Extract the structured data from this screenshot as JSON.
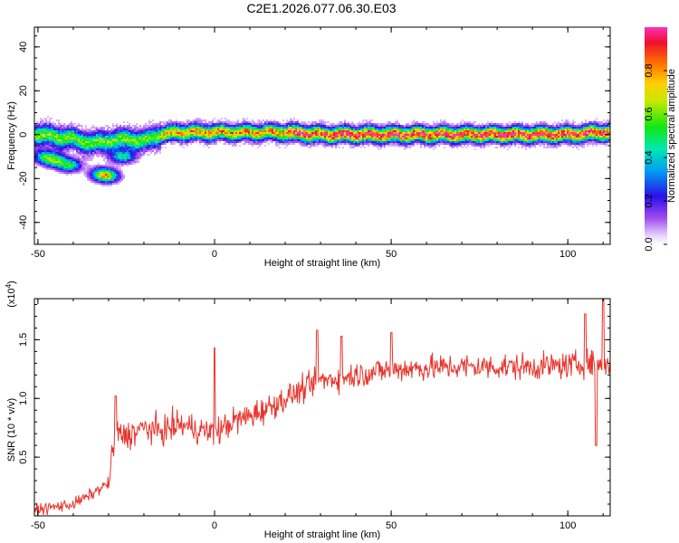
{
  "title": "C2E1.2026.077.06.30.E03",
  "chart_data": [
    {
      "type": "heatmap",
      "name": "spectrogram",
      "xlabel": "Height of straight line (km)",
      "ylabel": "Frequency (Hz)",
      "xlim": [
        -51,
        112
      ],
      "ylim": [
        -50,
        49
      ],
      "xticks": [
        -50,
        0,
        50,
        100
      ],
      "yticks": [
        -40,
        -20,
        0,
        20,
        40
      ],
      "xtick_labels": [
        "-50",
        "0",
        "50",
        "100"
      ],
      "ytick_labels": [
        "-40",
        "-20",
        "0",
        "20",
        "40"
      ],
      "ridge": {
        "x": [
          -50,
          -45,
          -40,
          -35,
          -30,
          -25,
          -20,
          -15,
          -10,
          -5,
          0,
          10,
          20,
          30,
          40,
          50,
          60,
          70,
          80,
          90,
          100,
          110
        ],
        "y": [
          0,
          -1,
          -2,
          -4,
          -3,
          -2,
          -3,
          0,
          1,
          1,
          1,
          1,
          1,
          0,
          0,
          0,
          0,
          0,
          0,
          0,
          0,
          1
        ]
      },
      "secondary_clusters": [
        {
          "x": -48,
          "y": -10
        },
        {
          "x": -45,
          "y": -12
        },
        {
          "x": -41,
          "y": -14
        },
        {
          "x": -32,
          "y": -18
        },
        {
          "x": -30,
          "y": -19
        },
        {
          "x": -26,
          "y": -10
        }
      ]
    },
    {
      "type": "colorbar",
      "label": "Normalized spectral amplitude",
      "ticks": [
        0.0,
        0.2,
        0.4,
        0.6,
        0.8
      ],
      "tick_labels": [
        "0.0",
        "0.2",
        "0.4",
        "0.6",
        "0.8"
      ],
      "range": [
        0,
        1
      ]
    },
    {
      "type": "line",
      "name": "snr",
      "xlabel": "Height of straight line (km)",
      "ylabel": "SNR (10 * v/v)",
      "multiplier": "(x10",
      "multiplier_exp": "4",
      "multiplier_close": ")",
      "xlim": [
        -51,
        112
      ],
      "ylim": [
        0,
        1.85
      ],
      "xticks": [
        -50,
        0,
        50,
        100
      ],
      "yticks": [
        0.5,
        1.0,
        1.5
      ],
      "xtick_labels": [
        "-50",
        "0",
        "50",
        "100"
      ],
      "ytick_labels": [
        "0.5",
        "1.0",
        "1.5"
      ],
      "color": "#e8362e",
      "trend": {
        "x": [
          -51,
          -40,
          -35,
          -30,
          -28,
          -25,
          -20,
          -15,
          -10,
          -5,
          0,
          5,
          10,
          15,
          20,
          30,
          40,
          50,
          60,
          70,
          80,
          90,
          100,
          105,
          110,
          112
        ],
        "y": [
          0.05,
          0.1,
          0.18,
          0.28,
          0.7,
          0.68,
          0.75,
          0.72,
          0.78,
          0.74,
          0.7,
          0.8,
          0.85,
          0.92,
          1.0,
          1.15,
          1.2,
          1.25,
          1.26,
          1.27,
          1.27,
          1.27,
          1.28,
          1.3,
          1.3,
          1.28
        ]
      },
      "spikes": [
        {
          "x": -28,
          "y": 1.02
        },
        {
          "x": 0,
          "y": 1.43
        },
        {
          "x": 29,
          "y": 1.58
        },
        {
          "x": 36,
          "y": 1.53
        },
        {
          "x": 50,
          "y": 1.56
        },
        {
          "x": 110,
          "y": 1.85
        },
        {
          "x": 105,
          "y": 1.72
        },
        {
          "x": 108,
          "y": 0.6
        }
      ]
    }
  ]
}
